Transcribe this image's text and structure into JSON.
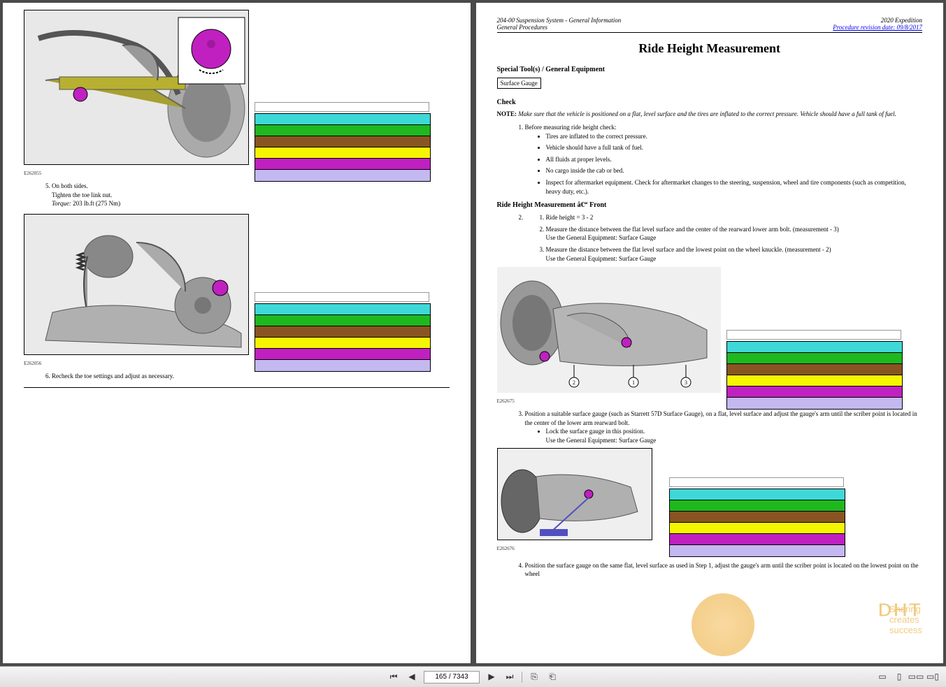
{
  "legend_colors": [
    "#3fd8d8",
    "#1fb81f",
    "#885522",
    "#f5f500",
    "#c020c0",
    "#c4b8f0"
  ],
  "left_page": {
    "fig1_id": "E262055",
    "fig2_id": "E262056",
    "step5_line1": "On both sides.",
    "step5_line2": "Tighten the toe link nut.",
    "step5_torque_label": "Torque:",
    "step5_torque_val": " 203 lb.ft (275 Nm)",
    "step6": "Recheck the toe settings and adjust as necessary."
  },
  "right_page": {
    "header_left1": "204-00 Suspension System - General Information",
    "header_left2": "General Procedures",
    "header_right1": "2020 Expedition",
    "header_right2": "Procedure revision date: 09/8/2017",
    "title": "Ride Height Measurement",
    "tools_heading": "Special Tool(s) / General Equipment",
    "tool": "Surface Gauge",
    "check_heading": "Check",
    "note_label": "NOTE:",
    "note_text": " Make sure that the vehicle is positioned on a flat, level surface and the tires are inflated to the correct pressure. Vehicle should have a full tank of fuel.",
    "step1": "Before measuring ride height check:",
    "step1_bullets": [
      "Tires are inflated to the correct pressure.",
      "Vehicle should have a full tank of fuel.",
      "All fluids at proper levels.",
      "No cargo inside the cab or bed.",
      "Inspect for aftermarket equipment. Check for aftermarket changes to the steering, suspension, wheel and tire components (such as competition, heavy duty, etc.)."
    ],
    "front_heading": "Ride Height Measurement â€“ Front",
    "step2_subs": [
      "Ride height = 3 - 2",
      "Measure the distance between the flat level surface and the center of the rearward lower arm bolt. (measurement - 3)",
      "Measure the distance between the flat level surface and the lowest point on the wheel knuckle. (measurement - 2)"
    ],
    "equip_line": "Use the General Equipment: Surface Gauge",
    "fig1_id": "E262675",
    "step3": "Position a suitable surface gauge (such as Starrett 57D Surface Gauge), on a flat, level surface and adjust the gauge's arm until the scriber point is located in the center of the lower arm rearward bolt.",
    "step3_bullet": "Lock the surface gauge in this position.",
    "fig2_id": "E262676",
    "step4": "Position the surface gauge on the same flat, level surface as used in Step 1, adjust the gauge's arm until the scriber point is located on the lowest point on the wheel"
  },
  "toolbar": {
    "page_current": "165",
    "page_total": "7343"
  },
  "watermark": {
    "logo": "DHT",
    "tagline": "Sharing creates success"
  }
}
